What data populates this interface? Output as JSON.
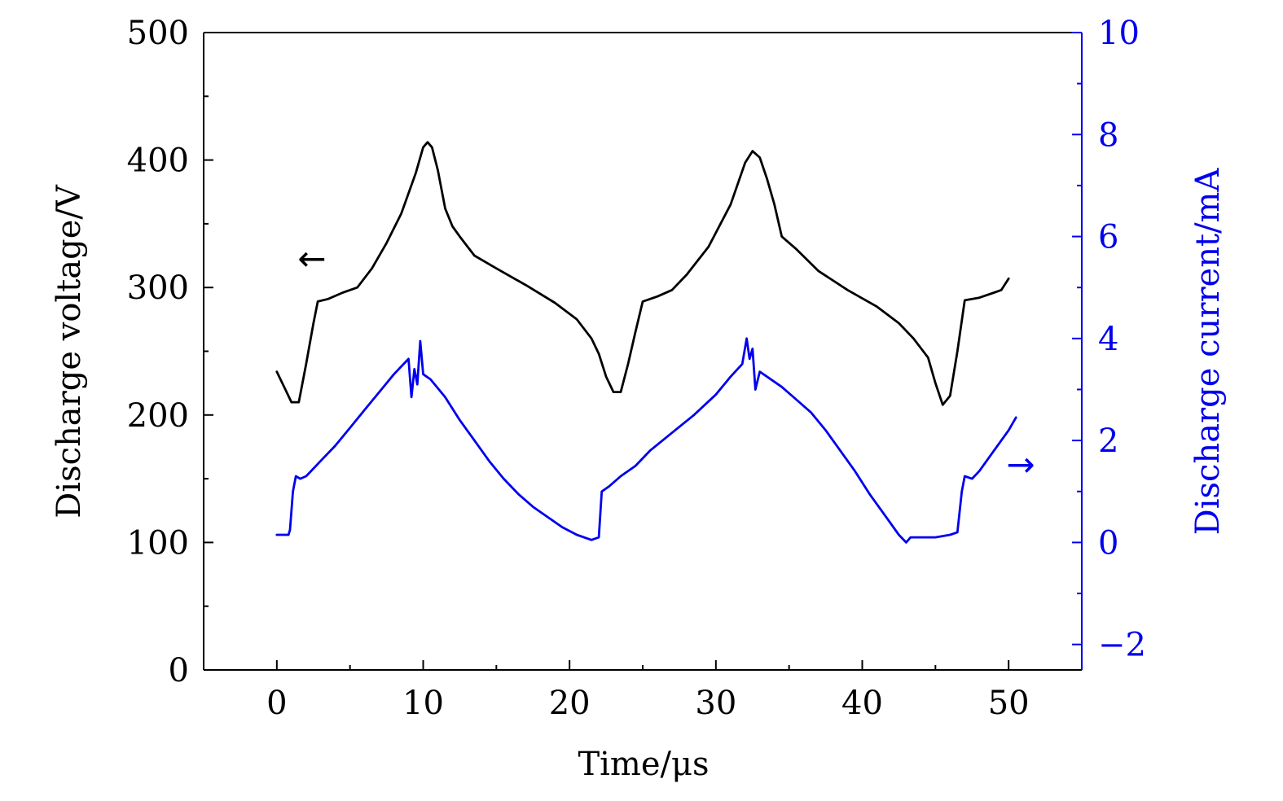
{
  "chart_data": {
    "type": "line",
    "xlabel": "Time/μs",
    "ylabel": "Discharge voltage/V",
    "y2label": "Discharge current/mA",
    "xlim": [
      -5,
      55
    ],
    "ylim": [
      0,
      500
    ],
    "y2lim": [
      -2.5,
      10
    ],
    "x_ticks": [
      0,
      10,
      20,
      30,
      40,
      50
    ],
    "y_ticks": [
      0,
      100,
      200,
      300,
      400,
      500
    ],
    "y2_ticks": [
      -2,
      0,
      2,
      4,
      6,
      8,
      10
    ],
    "y2_tick_labels": [
      "−2",
      "0",
      "2",
      "4",
      "6",
      "8",
      "10"
    ],
    "grid": false,
    "colors": {
      "voltage": "#000000",
      "current": "#0000ee"
    },
    "series": [
      {
        "axis": "left",
        "color": "#000000",
        "points": [
          [
            0,
            234
          ],
          [
            0.5,
            222
          ],
          [
            1.0,
            210
          ],
          [
            1.5,
            210
          ],
          [
            2.0,
            240
          ],
          [
            2.5,
            272
          ],
          [
            2.8,
            289
          ],
          [
            3.5,
            291
          ],
          [
            4.5,
            296
          ],
          [
            5.5,
            300
          ],
          [
            6.5,
            315
          ],
          [
            7.5,
            335
          ],
          [
            8.5,
            358
          ],
          [
            9.5,
            390
          ],
          [
            10.0,
            410
          ],
          [
            10.3,
            414
          ],
          [
            10.6,
            410
          ],
          [
            11.0,
            392
          ],
          [
            11.5,
            362
          ],
          [
            12.0,
            348
          ],
          [
            12.5,
            340
          ],
          [
            13.5,
            325
          ],
          [
            15.0,
            315
          ],
          [
            17.0,
            302
          ],
          [
            19.0,
            288
          ],
          [
            20.5,
            275
          ],
          [
            21.5,
            260
          ],
          [
            22.0,
            248
          ],
          [
            22.5,
            230
          ],
          [
            23.0,
            218
          ],
          [
            23.5,
            218
          ],
          [
            24.0,
            240
          ],
          [
            24.5,
            265
          ],
          [
            25.0,
            289
          ],
          [
            26.0,
            293
          ],
          [
            27.0,
            298
          ],
          [
            28.0,
            310
          ],
          [
            29.5,
            332
          ],
          [
            31.0,
            365
          ],
          [
            32.0,
            398
          ],
          [
            32.5,
            407
          ],
          [
            33.0,
            402
          ],
          [
            33.5,
            385
          ],
          [
            34.0,
            365
          ],
          [
            34.5,
            340
          ],
          [
            35.5,
            330
          ],
          [
            37.0,
            313
          ],
          [
            39.0,
            298
          ],
          [
            41.0,
            285
          ],
          [
            42.5,
            272
          ],
          [
            43.5,
            260
          ],
          [
            44.5,
            245
          ],
          [
            45.0,
            225
          ],
          [
            45.5,
            208
          ],
          [
            46.0,
            215
          ],
          [
            46.5,
            250
          ],
          [
            47.0,
            290
          ],
          [
            48.0,
            292
          ],
          [
            49.0,
            296
          ],
          [
            49.5,
            298
          ],
          [
            50.0,
            307
          ]
        ]
      },
      {
        "axis": "right",
        "color": "#0000ee",
        "points": [
          [
            0,
            0.15
          ],
          [
            0.8,
            0.15
          ],
          [
            0.9,
            0.25
          ],
          [
            1.1,
            1.0
          ],
          [
            1.3,
            1.3
          ],
          [
            1.6,
            1.25
          ],
          [
            2.0,
            1.3
          ],
          [
            3.0,
            1.6
          ],
          [
            4.0,
            1.9
          ],
          [
            5.0,
            2.25
          ],
          [
            6.0,
            2.6
          ],
          [
            7.0,
            2.95
          ],
          [
            8.0,
            3.3
          ],
          [
            9.0,
            3.6
          ],
          [
            9.2,
            2.85
          ],
          [
            9.4,
            3.4
          ],
          [
            9.6,
            3.1
          ],
          [
            9.8,
            3.95
          ],
          [
            10.0,
            3.3
          ],
          [
            10.5,
            3.2
          ],
          [
            11.5,
            2.85
          ],
          [
            12.5,
            2.4
          ],
          [
            13.5,
            2.0
          ],
          [
            14.5,
            1.6
          ],
          [
            15.5,
            1.25
          ],
          [
            16.5,
            0.95
          ],
          [
            17.5,
            0.7
          ],
          [
            18.5,
            0.5
          ],
          [
            19.5,
            0.3
          ],
          [
            20.5,
            0.15
          ],
          [
            21.5,
            0.05
          ],
          [
            22.0,
            0.1
          ],
          [
            22.2,
            1.0
          ],
          [
            22.7,
            1.1
          ],
          [
            23.5,
            1.3
          ],
          [
            24.5,
            1.5
          ],
          [
            25.5,
            1.8
          ],
          [
            27.0,
            2.15
          ],
          [
            28.5,
            2.5
          ],
          [
            30.0,
            2.9
          ],
          [
            31.0,
            3.25
          ],
          [
            31.8,
            3.5
          ],
          [
            32.1,
            4.0
          ],
          [
            32.3,
            3.6
          ],
          [
            32.5,
            3.8
          ],
          [
            32.7,
            3.0
          ],
          [
            33.0,
            3.35
          ],
          [
            33.5,
            3.25
          ],
          [
            34.5,
            3.05
          ],
          [
            35.5,
            2.8
          ],
          [
            36.5,
            2.55
          ],
          [
            37.5,
            2.2
          ],
          [
            38.5,
            1.8
          ],
          [
            39.5,
            1.4
          ],
          [
            40.5,
            0.95
          ],
          [
            41.5,
            0.55
          ],
          [
            42.5,
            0.15
          ],
          [
            43.0,
            0.0
          ],
          [
            43.3,
            0.1
          ],
          [
            44.0,
            0.1
          ],
          [
            45.0,
            0.1
          ],
          [
            46.0,
            0.15
          ],
          [
            46.5,
            0.2
          ],
          [
            46.8,
            1.0
          ],
          [
            47.0,
            1.3
          ],
          [
            47.5,
            1.25
          ],
          [
            48.0,
            1.4
          ],
          [
            49.0,
            1.8
          ],
          [
            50.0,
            2.2
          ],
          [
            50.5,
            2.45
          ]
        ]
      }
    ],
    "annotations": [
      {
        "symbol": "←",
        "series_axis": "left"
      },
      {
        "symbol": "→",
        "series_axis": "right"
      }
    ]
  }
}
